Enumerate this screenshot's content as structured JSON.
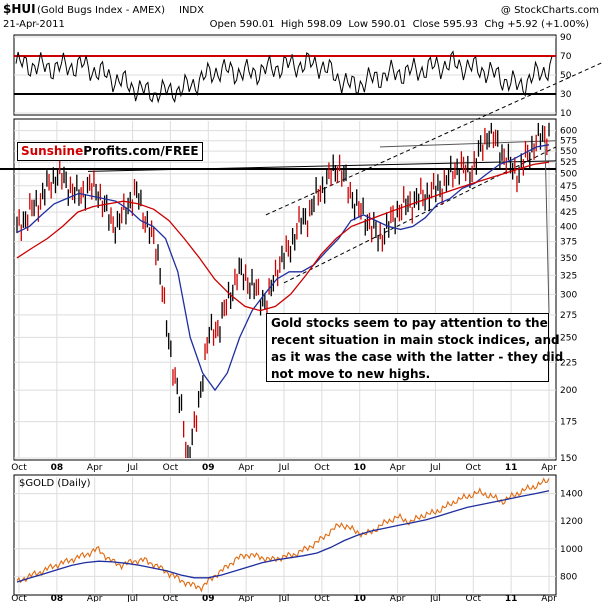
{
  "header": {
    "symbol": "$HUI",
    "subtitle": "(Gold Bugs Index - AMEX)",
    "indx": "INDX",
    "date": "21-Apr-2011",
    "ohlc": "Open 590.01  High 598.09  Low 590.01  Close 595.93  Chg +5.92 (+1.00%)",
    "credit": "@ StockCharts.com"
  },
  "brand": {
    "red": "Sunshine",
    "black": "Profits.com/FREE"
  },
  "annotation": {
    "lines": [
      "Gold stocks seem to pay attention to the",
      "recent situation in main stock indices, and",
      "as it was the case with the latter - they did",
      "not move to new highs."
    ]
  },
  "gold_panel": {
    "title": "$GOLD (Daily)"
  },
  "colors": {
    "background": "#ffffff",
    "price_bars": "#000000",
    "down_candles": "#cc0000",
    "ma_short": "#1f2fa0",
    "ma_long": "#cc0000",
    "rsi_band": "#cc0000",
    "gold_line": "#e06a10",
    "gold_ma": "#1f2fa0",
    "trend_lines": "#000000"
  },
  "chart_data": [
    {
      "type": "line",
      "title": "RSI",
      "ylim": [
        10,
        90
      ],
      "yticks": [
        10,
        30,
        50,
        70,
        90
      ],
      "reference_levels": [
        30,
        70
      ],
      "x": [
        "2007-10",
        "2007-12",
        "2008-03",
        "2008-06",
        "2008-09",
        "2008-11",
        "2009-01",
        "2009-03",
        "2009-06",
        "2009-09",
        "2009-12",
        "2010-03",
        "2010-06",
        "2010-09",
        "2010-12",
        "2011-02",
        "2011-04"
      ],
      "values": [
        62,
        58,
        60,
        45,
        30,
        35,
        55,
        52,
        60,
        62,
        38,
        50,
        55,
        62,
        55,
        38,
        60
      ],
      "grid": true
    },
    {
      "type": "line",
      "title": "$HUI (Gold Bugs Index - AMEX)",
      "ylabel": "",
      "ylim": [
        150,
        625
      ],
      "yticks": [
        150,
        175,
        200,
        225,
        250,
        275,
        300,
        325,
        350,
        375,
        400,
        425,
        450,
        475,
        500,
        525,
        550,
        575,
        600
      ],
      "x_ticks": [
        "Oct",
        "08",
        "Apr",
        "Jul",
        "Oct",
        "09",
        "Apr",
        "Jul",
        "Oct",
        "10",
        "Apr",
        "Jul",
        "Oct",
        "11",
        "Apr"
      ],
      "series": [
        {
          "values": [
            395,
            420,
            440,
            470,
            500,
            480,
            455,
            470,
            470,
            420,
            400,
            440,
            460,
            400,
            360,
            250,
            200,
            150,
            180,
            250,
            260,
            290,
            330,
            320,
            300,
            290,
            340,
            360,
            400,
            420,
            460,
            490,
            520,
            470,
            430,
            410,
            380,
            400,
            430,
            440,
            450,
            460,
            470,
            490,
            520,
            500,
            540,
            600,
            560,
            520,
            500,
            550,
            580,
            596
          ]
        },
        {
          "values": [
            390,
            400,
            420,
            440,
            450,
            460,
            455,
            450,
            445,
            430,
            410,
            400,
            380,
            330,
            250,
            215,
            200,
            215,
            250,
            280,
            300,
            320,
            330,
            330,
            340,
            360,
            380,
            410,
            420,
            410,
            400,
            395,
            400,
            415,
            440,
            450,
            470,
            480,
            500,
            520,
            530,
            545,
            560,
            565
          ]
        },
        {
          "values": [
            350,
            365,
            380,
            400,
            425,
            435,
            440,
            445,
            440,
            430,
            410,
            380,
            350,
            320,
            300,
            285,
            280,
            285,
            300,
            325,
            355,
            380,
            400,
            410,
            420,
            430,
            440,
            450,
            460,
            470,
            480,
            490,
            500,
            510,
            520,
            525
          ]
        }
      ],
      "reference_levels": [
        510
      ],
      "grid": true
    },
    {
      "type": "line",
      "title": "$GOLD (Daily)",
      "ylim": [
        680,
        1520
      ],
      "yticks": [
        800,
        1000,
        1200,
        1400
      ],
      "series": [
        {
          "values": [
            760,
            800,
            830,
            870,
            900,
            930,
            960,
            1000,
            920,
            880,
            910,
            920,
            880,
            830,
            780,
            740,
            720,
            800,
            860,
            930,
            960,
            940,
            920,
            940,
            960,
            1000,
            1050,
            1120,
            1180,
            1140,
            1100,
            1140,
            1200,
            1230,
            1190,
            1240,
            1260,
            1300,
            1350,
            1380,
            1410,
            1380,
            1340,
            1390,
            1430,
            1460,
            1500
          ]
        },
        {
          "values": [
            760,
            790,
            820,
            850,
            880,
            900,
            910,
            905,
            895,
            880,
            860,
            840,
            810,
            790,
            790,
            810,
            840,
            870,
            900,
            920,
            935,
            950,
            970,
            1010,
            1060,
            1100,
            1130,
            1150,
            1170,
            1190,
            1210,
            1240,
            1270,
            1300,
            1320,
            1340,
            1360,
            1380,
            1400,
            1420
          ]
        }
      ],
      "grid": true
    }
  ]
}
